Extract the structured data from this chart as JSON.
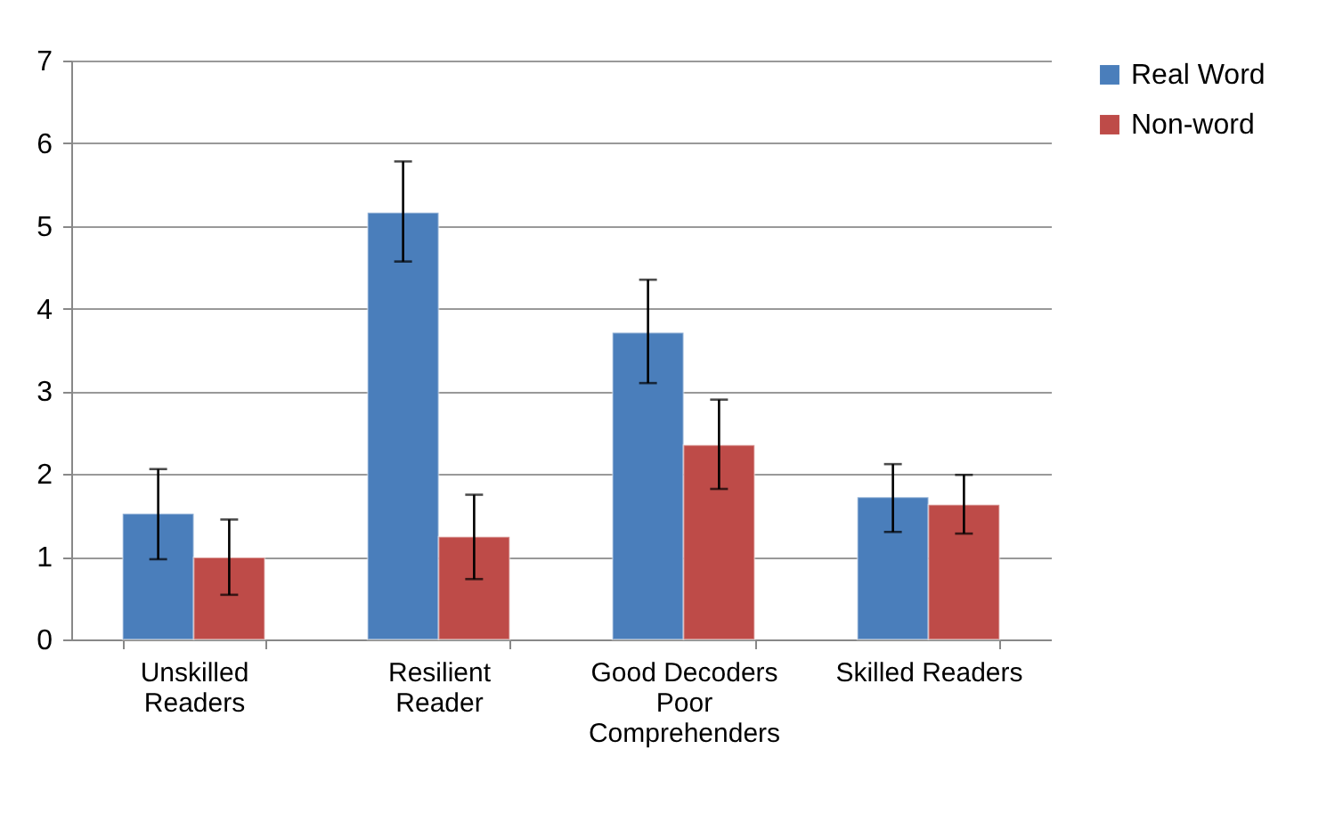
{
  "chart_data": {
    "type": "bar",
    "categories": [
      "Unskilled Readers",
      "Resilient Reader",
      "Good Decoders Poor Comprehenders",
      "Skilled Readers"
    ],
    "series": [
      {
        "name": "Real Word",
        "color": "#4a7ebb",
        "values": [
          1.52,
          5.16,
          3.71,
          1.72
        ],
        "errors": [
          [
            0.97,
            2.06
          ],
          [
            4.57,
            5.78
          ],
          [
            3.1,
            4.35
          ],
          [
            1.3,
            2.12
          ]
        ]
      },
      {
        "name": "Non-word",
        "color": "#be4b48",
        "values": [
          0.99,
          1.24,
          2.35,
          1.63
        ],
        "errors": [
          [
            0.54,
            1.45
          ],
          [
            0.73,
            1.75
          ],
          [
            1.82,
            2.9
          ],
          [
            1.28,
            1.99
          ]
        ]
      }
    ],
    "ylim": [
      0,
      7
    ],
    "yticks": [
      0,
      1,
      2,
      3,
      4,
      5,
      6,
      7
    ],
    "grid": "y",
    "legend": "right"
  }
}
